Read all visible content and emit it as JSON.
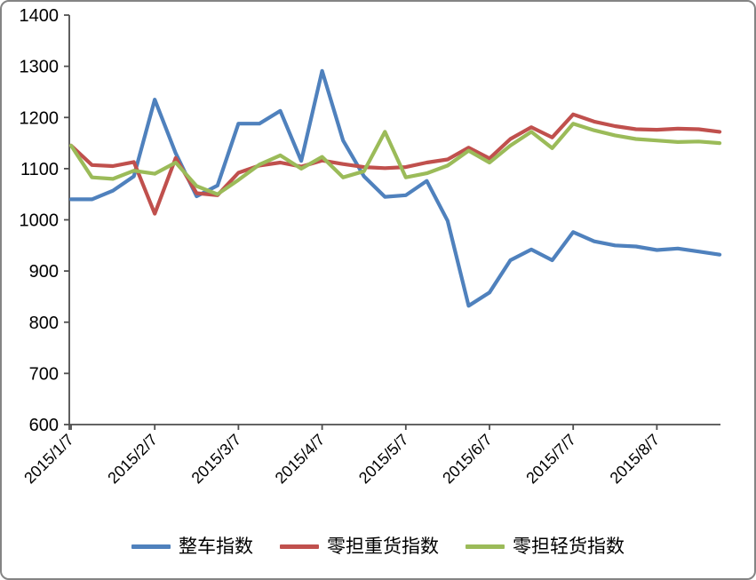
{
  "chart_data": {
    "type": "line",
    "title": "",
    "categories": [
      "2015/1/7",
      "2015/1/14",
      "2015/1/21",
      "2015/1/28",
      "2015/2/7",
      "2015/2/14",
      "2015/2/21",
      "2015/2/28",
      "2015/3/7",
      "2015/3/14",
      "2015/3/21",
      "2015/3/28",
      "2015/4/7",
      "2015/4/14",
      "2015/4/21",
      "2015/4/28",
      "2015/5/7",
      "2015/5/14",
      "2015/5/21",
      "2015/5/28",
      "2015/6/7",
      "2015/6/14",
      "2015/6/21",
      "2015/6/28",
      "2015/7/7",
      "2015/7/14",
      "2015/7/21",
      "2015/7/28",
      "2015/8/7",
      "2015/8/14",
      "2015/8/21",
      "2015/8/28"
    ],
    "series": [
      {
        "name": "整车指数",
        "color": "#4F81BD",
        "values": [
          1040,
          1040,
          1057,
          1085,
          1235,
          1130,
          1046,
          1067,
          1188,
          1188,
          1213,
          1115,
          1291,
          1155,
          1085,
          1045,
          1048,
          1076,
          998,
          832,
          858,
          921,
          942,
          921,
          976,
          958,
          950,
          948,
          941,
          944,
          938,
          932
        ]
      },
      {
        "name": "零担重货指数",
        "color": "#C0504D",
        "values": [
          1145,
          1107,
          1105,
          1113,
          1012,
          1121,
          1052,
          1048,
          1092,
          1106,
          1112,
          1104,
          1116,
          1109,
          1103,
          1101,
          1103,
          1112,
          1118,
          1141,
          1120,
          1158,
          1181,
          1161,
          1206,
          1192,
          1183,
          1177,
          1176,
          1178,
          1177,
          1172
        ]
      },
      {
        "name": "零担轻货指数",
        "color": "#9BBB59",
        "values": [
          1145,
          1083,
          1080,
          1096,
          1090,
          1112,
          1066,
          1050,
          1078,
          1108,
          1126,
          1100,
          1123,
          1083,
          1095,
          1172,
          1083,
          1091,
          1106,
          1135,
          1112,
          1145,
          1172,
          1140,
          1188,
          1175,
          1165,
          1158,
          1155,
          1152,
          1153,
          1150
        ]
      }
    ],
    "xlabel": "",
    "ylabel": "",
    "ylim": [
      600,
      1400
    ],
    "ytick_step": 100,
    "y_tick_labels": [
      "600",
      "700",
      "800",
      "900",
      "1000",
      "1100",
      "1200",
      "1300",
      "1400"
    ],
    "x_tick_labels": [
      "2015/1/7",
      "2015/2/7",
      "2015/3/7",
      "2015/4/7",
      "2015/5/7",
      "2015/6/7",
      "2015/7/7",
      "2015/8/7"
    ],
    "x_tick_every": 4,
    "grid": false,
    "legend_position": "bottom",
    "axis_color": "#4d4d4d",
    "label_color": "#000000"
  }
}
